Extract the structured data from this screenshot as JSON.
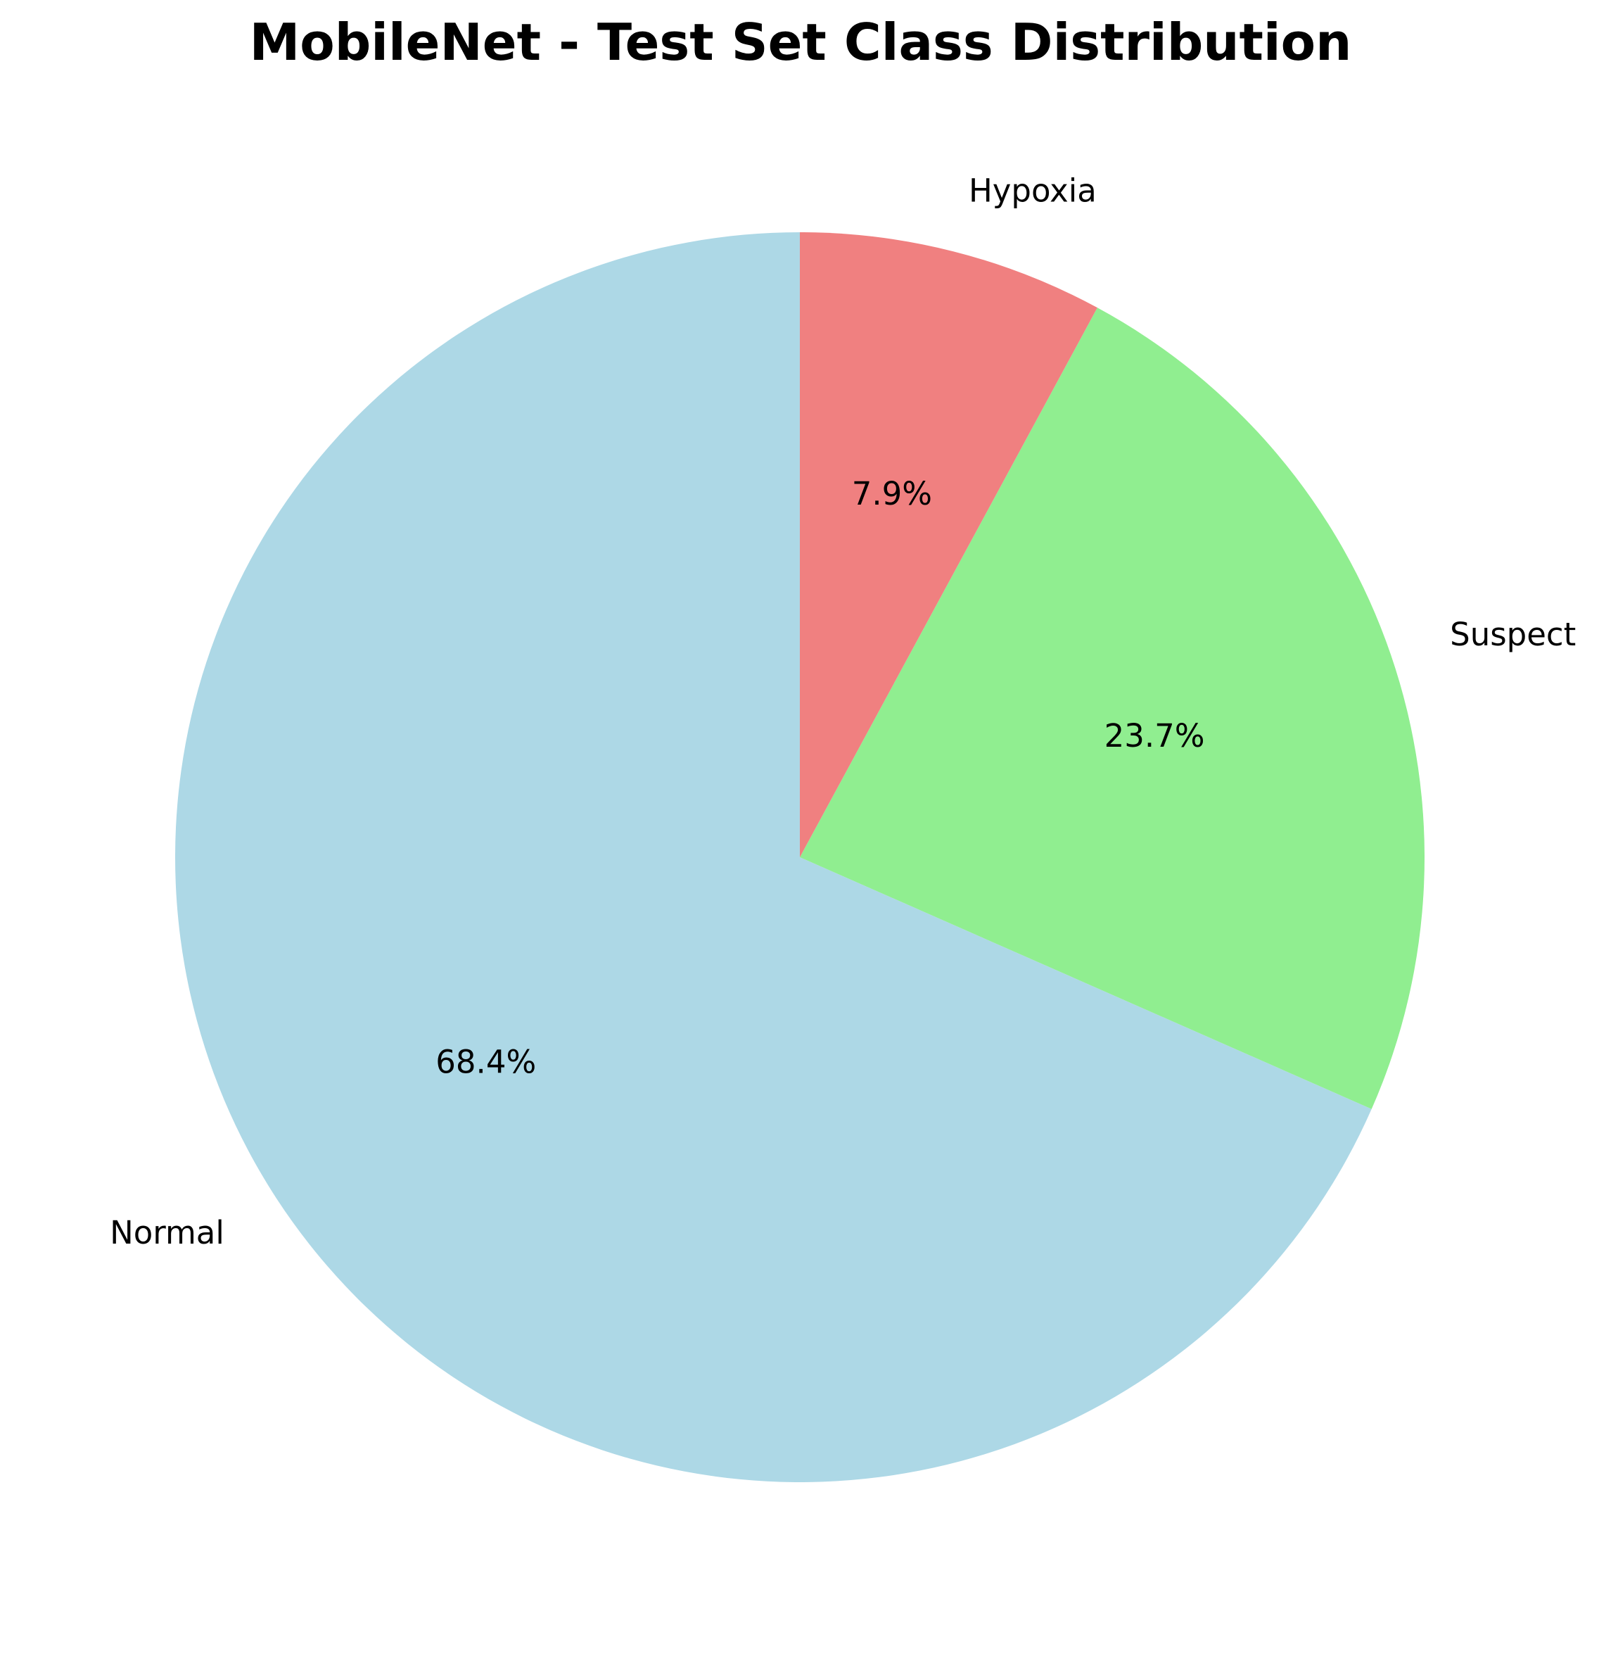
{
  "chart_data": {
    "type": "pie",
    "title": "MobileNet - Test Set Class Distribution",
    "slices": [
      {
        "label": "Normal",
        "value": 68.4,
        "pct_label": "68.4%",
        "color": "#add8e6"
      },
      {
        "label": "Suspect",
        "value": 23.7,
        "pct_label": "23.7%",
        "color": "#90ee90"
      },
      {
        "label": "Hypoxia",
        "value": 7.9,
        "pct_label": "7.9%",
        "color": "#f08080"
      }
    ],
    "start_angle_deg": 90,
    "direction": "counterclockwise"
  }
}
